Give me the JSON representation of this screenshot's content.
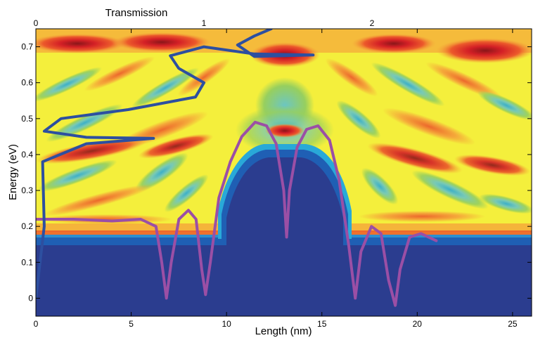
{
  "chart_data": {
    "type": "heatmap",
    "title": "",
    "xlabel": "Length (nm)",
    "ylabel": "Energy (eV)",
    "top_axis_label": "Transmission",
    "xlim": [
      0,
      26
    ],
    "ylim": [
      -0.05,
      0.75
    ],
    "x_ticks": [
      0,
      5,
      10,
      15,
      20,
      25
    ],
    "y_ticks": [
      0,
      0.1,
      0.2,
      0.3,
      0.4,
      0.5,
      0.6,
      0.7
    ],
    "top_ticks": [
      0,
      1,
      2
    ],
    "top_xlim": [
      0,
      2.95
    ],
    "grid": false,
    "legend": "none",
    "colormap": [
      "#2b3d8f",
      "#1f5fb4",
      "#29a9d8",
      "#6cc6c2",
      "#97cf5e",
      "#f4ef3c",
      "#f5a53a",
      "#ec5a2b",
      "#d42026",
      "#8a1619"
    ],
    "series": [
      {
        "kind": "potential_profile",
        "color": "#9b4fa5",
        "points": [
          [
            0,
            0.22
          ],
          [
            2,
            0.22
          ],
          [
            4,
            0.215
          ],
          [
            5.5,
            0.22
          ],
          [
            6.3,
            0.2
          ],
          [
            6.6,
            0.1
          ],
          [
            6.85,
            0.0
          ],
          [
            7.1,
            0.1
          ],
          [
            7.5,
            0.22
          ],
          [
            8.0,
            0.245
          ],
          [
            8.4,
            0.22
          ],
          [
            8.7,
            0.08
          ],
          [
            8.9,
            0.01
          ],
          [
            9.15,
            0.1
          ],
          [
            9.6,
            0.28
          ],
          [
            10.2,
            0.38
          ],
          [
            10.8,
            0.45
          ],
          [
            11.5,
            0.49
          ],
          [
            12.1,
            0.48
          ],
          [
            12.6,
            0.43
          ],
          [
            13.0,
            0.3
          ],
          [
            13.15,
            0.17
          ],
          [
            13.3,
            0.3
          ],
          [
            13.7,
            0.42
          ],
          [
            14.2,
            0.47
          ],
          [
            14.8,
            0.48
          ],
          [
            15.4,
            0.44
          ],
          [
            15.9,
            0.33
          ],
          [
            16.4,
            0.15
          ],
          [
            16.75,
            0.0
          ],
          [
            17.05,
            0.13
          ],
          [
            17.6,
            0.2
          ],
          [
            18.1,
            0.18
          ],
          [
            18.5,
            0.05
          ],
          [
            18.85,
            -0.02
          ],
          [
            19.1,
            0.08
          ],
          [
            19.6,
            0.17
          ],
          [
            20.2,
            0.18
          ],
          [
            21,
            0.16
          ]
        ]
      },
      {
        "kind": "transmission",
        "color": "#2d4fa0",
        "points": [
          [
            0.0,
            0.0
          ],
          [
            0.05,
            0.2
          ],
          [
            0.04,
            0.38
          ],
          [
            0.3,
            0.43
          ],
          [
            0.7,
            0.445
          ],
          [
            0.3,
            0.448
          ],
          [
            0.05,
            0.465
          ],
          [
            0.15,
            0.5
          ],
          [
            0.55,
            0.525
          ],
          [
            0.95,
            0.56
          ],
          [
            1.0,
            0.6
          ],
          [
            0.85,
            0.64
          ],
          [
            0.8,
            0.675
          ],
          [
            1.0,
            0.7
          ],
          [
            1.3,
            0.68
          ],
          [
            1.65,
            0.677
          ],
          [
            1.3,
            0.673
          ],
          [
            1.2,
            0.705
          ],
          [
            1.3,
            0.73
          ],
          [
            1.4,
            0.75
          ]
        ]
      }
    ]
  }
}
